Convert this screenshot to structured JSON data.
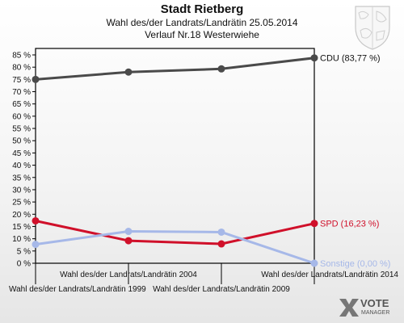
{
  "header": {
    "title": "Stadt Rietberg",
    "subtitle": "Wahl des/der Landrats/Landrätin 25.05.2014",
    "subtitle2": "Verlauf Nr.18 Westerwiehe"
  },
  "logo": {
    "text1": "VOTE",
    "text2": "MANAGER"
  },
  "chart_data": {
    "type": "line",
    "categories": [
      "Wahl des/der Landrats/Landrätin 1999",
      "Wahl des/der Landrats/Landrätin 2004",
      "Wahl des/der Landrats/Landrätin 2009",
      "Wahl des/der Landrats/Landrätin 2014"
    ],
    "ylim": [
      0,
      85
    ],
    "ytick_step": 5,
    "ytick_suffix": " %",
    "grid": false,
    "series": [
      {
        "name": "CDU",
        "end_label": "CDU (83,77 %)",
        "color": "#4a4a4a",
        "values": [
          75.0,
          78.0,
          79.3,
          83.77
        ]
      },
      {
        "name": "SPD",
        "end_label": "SPD (16,23 %)",
        "color": "#d0102a",
        "values": [
          17.3,
          9.2,
          7.9,
          16.23
        ]
      },
      {
        "name": "Sonstige",
        "end_label": "Sonstige (0,00 %)",
        "color": "#a6b8e8",
        "values": [
          7.7,
          13.0,
          12.7,
          0.0
        ]
      }
    ]
  }
}
